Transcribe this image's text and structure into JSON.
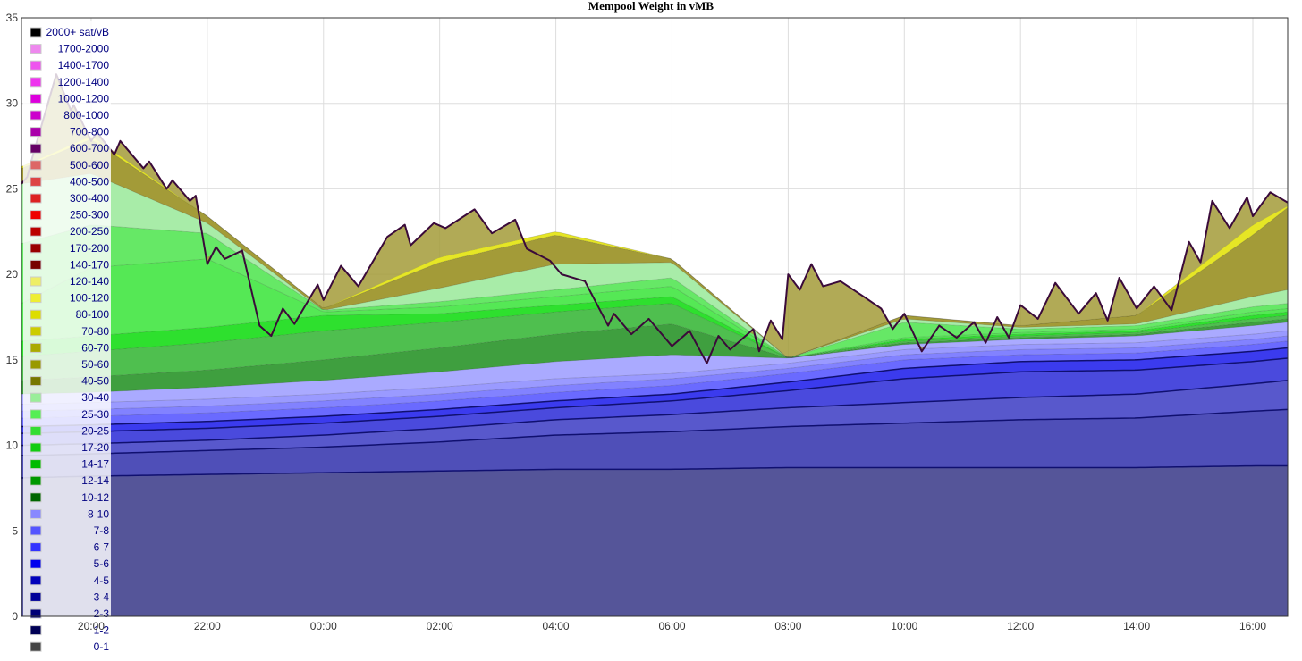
{
  "chart_data": {
    "type": "area",
    "title": "Mempool Weight in vMB",
    "xlabel": "",
    "ylabel": "",
    "ylim": [
      0,
      35
    ],
    "y_ticks": [
      0,
      5,
      10,
      15,
      20,
      25,
      30,
      35
    ],
    "x_range_hours": [
      18.8,
      40.6
    ],
    "x_ticks": [
      {
        "label": "20:00",
        "h": 20
      },
      {
        "label": "22:00",
        "h": 22
      },
      {
        "label": "00:00",
        "h": 24
      },
      {
        "label": "02:00",
        "h": 26
      },
      {
        "label": "04:00",
        "h": 28
      },
      {
        "label": "06:00",
        "h": 30
      },
      {
        "label": "08:00",
        "h": 32
      },
      {
        "label": "10:00",
        "h": 34
      },
      {
        "label": "12:00",
        "h": 36
      },
      {
        "label": "14:00",
        "h": 38
      },
      {
        "label": "16:00",
        "h": 40
      }
    ],
    "grid": true,
    "legend_position": "top-left",
    "legend": [
      {
        "label": "2000+ sat/vB",
        "color": "#000000"
      },
      {
        "label": "1700-2000",
        "color": "#ee88ee"
      },
      {
        "label": "1400-1700",
        "color": "#ee55ee"
      },
      {
        "label": "1200-1400",
        "color": "#ee33ee"
      },
      {
        "label": "1000-1200",
        "color": "#dd00dd"
      },
      {
        "label": "800-1000",
        "color": "#cc00cc"
      },
      {
        "label": "700-800",
        "color": "#aa00aa"
      },
      {
        "label": "600-700",
        "color": "#660066"
      },
      {
        "label": "500-600",
        "color": "#dd6666"
      },
      {
        "label": "400-500",
        "color": "#dd4444"
      },
      {
        "label": "300-400",
        "color": "#dd2222"
      },
      {
        "label": "250-300",
        "color": "#ee0000"
      },
      {
        "label": "200-250",
        "color": "#bb0000"
      },
      {
        "label": "170-200",
        "color": "#990000"
      },
      {
        "label": "140-170",
        "color": "#770000"
      },
      {
        "label": "120-140",
        "color": "#eeee66"
      },
      {
        "label": "100-120",
        "color": "#eeee33"
      },
      {
        "label": "80-100",
        "color": "#dddd00"
      },
      {
        "label": "70-80",
        "color": "#cccc00"
      },
      {
        "label": "60-70",
        "color": "#aaaa00"
      },
      {
        "label": "50-60",
        "color": "#999900"
      },
      {
        "label": "40-50",
        "color": "#777700"
      },
      {
        "label": "30-40",
        "color": "#99ee99"
      },
      {
        "label": "25-30",
        "color": "#55ee55"
      },
      {
        "label": "20-25",
        "color": "#33dd33"
      },
      {
        "label": "17-20",
        "color": "#11cc11"
      },
      {
        "label": "14-17",
        "color": "#00bb00"
      },
      {
        "label": "12-14",
        "color": "#009900"
      },
      {
        "label": "10-12",
        "color": "#006600"
      },
      {
        "label": "8-10",
        "color": "#8888ff"
      },
      {
        "label": "7-8",
        "color": "#5555ff"
      },
      {
        "label": "6-7",
        "color": "#3333ff"
      },
      {
        "label": "5-6",
        "color": "#0000ee"
      },
      {
        "label": "4-5",
        "color": "#0000bb"
      },
      {
        "label": "3-4",
        "color": "#000099"
      },
      {
        "label": "2-3",
        "color": "#000077"
      },
      {
        "label": "1-2",
        "color": "#000055"
      },
      {
        "label": "0-1",
        "color": "#444444"
      }
    ],
    "series": [
      {
        "label": "0-1",
        "color": "#555599",
        "x": [
          18.8,
          20,
          22,
          24,
          26,
          28,
          30,
          32,
          34,
          36,
          38,
          40,
          40.6
        ],
        "y": [
          8.1,
          8.2,
          8.3,
          8.4,
          8.5,
          8.6,
          8.6,
          8.7,
          8.7,
          8.7,
          8.7,
          8.8,
          8.8
        ]
      },
      {
        "label": "1-2",
        "color": "#4f4fb8",
        "x": [
          18.8,
          20,
          22,
          24,
          26,
          28,
          30,
          32,
          34,
          36,
          38,
          40,
          40.6
        ],
        "y": [
          1.3,
          1.3,
          1.4,
          1.5,
          1.7,
          2.0,
          2.2,
          2.4,
          2.6,
          2.8,
          2.9,
          3.2,
          3.3
        ]
      },
      {
        "label": "2-3",
        "color": "#5858cc",
        "x": [
          18.8,
          20,
          22,
          24,
          26,
          28,
          30,
          32,
          34,
          36,
          38,
          40,
          40.6
        ],
        "y": [
          0.6,
          0.6,
          0.6,
          0.7,
          0.8,
          0.9,
          1.0,
          1.1,
          1.2,
          1.3,
          1.4,
          1.6,
          1.7
        ]
      },
      {
        "label": "3-4",
        "color": "#4a4add",
        "x": [
          18.8,
          20,
          22,
          24,
          26,
          28,
          30,
          32,
          34,
          36,
          38,
          40,
          40.6
        ],
        "y": [
          0.7,
          0.7,
          0.7,
          0.7,
          0.7,
          0.7,
          0.8,
          1.0,
          1.4,
          1.5,
          1.4,
          1.3,
          1.3
        ]
      },
      {
        "label": "4-5",
        "color": "#3b3bee",
        "x": [
          18.8,
          20,
          22,
          24,
          26,
          28,
          30,
          32,
          34,
          36,
          38,
          40,
          40.6
        ],
        "y": [
          0.4,
          0.4,
          0.4,
          0.4,
          0.4,
          0.4,
          0.4,
          0.5,
          0.6,
          0.6,
          0.6,
          0.6,
          0.6
        ]
      },
      {
        "label": "5-6",
        "color": "#6a6aff",
        "x": [
          18.8,
          20,
          22,
          24,
          26,
          28,
          30,
          32,
          34,
          36,
          38,
          40,
          40.6
        ],
        "y": [
          0.5,
          0.5,
          0.5,
          0.5,
          0.5,
          0.5,
          0.5,
          0.5,
          0.5,
          0.4,
          0.4,
          0.4,
          0.4
        ]
      },
      {
        "label": "6-7",
        "color": "#8282ff",
        "x": [
          18.8,
          20,
          22,
          24,
          26,
          28,
          30,
          32,
          34,
          36,
          38,
          40,
          40.6
        ],
        "y": [
          0.4,
          0.4,
          0.4,
          0.4,
          0.4,
          0.4,
          0.4,
          0.3,
          0.3,
          0.3,
          0.3,
          0.3,
          0.3
        ]
      },
      {
        "label": "7-8",
        "color": "#9a9aff",
        "x": [
          18.8,
          20,
          22,
          24,
          26,
          28,
          30,
          32,
          34,
          36,
          38,
          40,
          40.6
        ],
        "y": [
          0.4,
          0.4,
          0.4,
          0.4,
          0.4,
          0.4,
          0.3,
          0.3,
          0.3,
          0.3,
          0.3,
          0.3,
          0.3
        ]
      },
      {
        "label": "8-10",
        "color": "#aaaaff",
        "x": [
          18.8,
          20,
          22,
          24,
          26,
          28,
          30,
          32,
          34,
          36,
          38,
          40,
          40.6
        ],
        "y": [
          0.6,
          0.6,
          0.7,
          0.8,
          0.9,
          1.0,
          1.1,
          0.3,
          0.3,
          0.3,
          0.4,
          0.5,
          0.5
        ]
      },
      {
        "label": "10-12",
        "color": "#3f9f3f",
        "x": [
          18.8,
          20,
          22,
          24,
          26,
          28,
          30,
          32,
          34,
          36,
          38,
          40,
          40.6
        ],
        "y": [
          0.8,
          0.9,
          1.0,
          1.2,
          1.4,
          1.6,
          1.8,
          0.0,
          0.1,
          0.1,
          0.1,
          0.2,
          0.2
        ]
      },
      {
        "label": "12-14",
        "color": "#4fbf4f",
        "x": [
          18.8,
          20,
          22,
          24,
          26,
          28,
          30,
          32,
          34,
          36,
          38,
          40,
          40.6
        ],
        "y": [
          1.4,
          1.5,
          1.6,
          1.7,
          1.5,
          1.3,
          1.2,
          0.0,
          0.1,
          0.1,
          0.1,
          0.2,
          0.2
        ]
      },
      {
        "label": "14-17",
        "color": "#2ee02e",
        "x": [
          18.8,
          20,
          22,
          24,
          26,
          28,
          30,
          32,
          34,
          36,
          38,
          40,
          40.6
        ],
        "y": [
          0.9,
          0.9,
          0.9,
          0.9,
          0.5,
          0.4,
          0.4,
          0.0,
          0.1,
          0.1,
          0.1,
          0.2,
          0.2
        ]
      },
      {
        "label": "17-20",
        "color": "#55e855",
        "x": [
          18.8,
          20,
          22,
          24,
          26,
          28,
          30,
          32,
          34,
          36,
          38,
          40,
          40.6
        ],
        "y": [
          2.2,
          4.0,
          4.0,
          0.2,
          0.4,
          0.5,
          0.6,
          0.0,
          0.1,
          0.1,
          0.1,
          0.2,
          0.2
        ]
      },
      {
        "label": "20-25",
        "color": "#66e866",
        "x": [
          18.8,
          20,
          22,
          24,
          26,
          28,
          30,
          32,
          34,
          36,
          38,
          40,
          40.6
        ],
        "y": [
          3.5,
          2.5,
          1.5,
          0.1,
          0.3,
          0.4,
          0.5,
          0.0,
          0.9,
          0.2,
          0.2,
          0.3,
          0.3
        ]
      },
      {
        "label": "30-40",
        "color": "#a8eca8",
        "x": [
          18.8,
          20,
          22,
          24,
          26,
          28,
          30,
          32,
          34,
          36,
          38,
          40,
          40.6
        ],
        "y": [
          3.5,
          3.0,
          0.6,
          0.0,
          0.8,
          1.5,
          0.9,
          0.0,
          0.2,
          0.1,
          0.1,
          0.6,
          0.8
        ]
      },
      {
        "label": "40-50",
        "color": "#a39b38",
        "x": [
          18.8,
          20,
          22,
          24,
          26,
          28,
          30,
          32,
          34,
          36,
          38,
          40,
          40.6
        ],
        "y": [
          0.9,
          2.0,
          0.4,
          0.1,
          1.5,
          1.7,
          0.2,
          0.0,
          0.2,
          0.1,
          0.5,
          3.6,
          4.8
        ]
      },
      {
        "label": "80-100",
        "color": "#e6e625",
        "x": [
          18.8,
          20,
          22,
          24,
          26,
          28,
          30,
          32,
          34,
          36,
          38,
          40,
          40.6
        ],
        "y": [
          0.1,
          0.2,
          0.0,
          0.0,
          0.3,
          0.2,
          0.0,
          0.0,
          0.0,
          0.0,
          0.0,
          0.6,
          0.1
        ]
      }
    ],
    "total_outline": {
      "color": "#3a0a3a",
      "x": [
        18.8,
        18.9,
        19.0,
        19.4,
        19.65,
        19.7,
        20.0,
        20.1,
        20.4,
        20.5,
        20.9,
        21.0,
        21.3,
        21.4,
        21.7,
        21.8,
        22.0,
        22.15,
        22.3,
        22.6,
        22.9,
        23.1,
        23.3,
        23.5,
        23.9,
        24.0,
        24.3,
        24.6,
        25.1,
        25.4,
        25.5,
        25.9,
        26.1,
        26.6,
        26.9,
        27.3,
        27.5,
        27.9,
        28.1,
        28.5,
        28.9,
        29.0,
        29.3,
        29.6,
        30.0,
        30.3,
        30.6,
        30.8,
        31.0,
        31.4,
        31.5,
        31.7,
        31.9,
        32.0,
        32.2,
        32.4,
        32.6,
        32.9,
        33.3,
        33.6,
        33.8,
        34.0,
        34.3,
        34.6,
        34.9,
        35.2,
        35.4,
        35.6,
        35.8,
        36.0,
        36.3,
        36.6,
        37.0,
        37.3,
        37.5,
        37.7,
        38.0,
        38.3,
        38.6,
        38.9,
        39.1,
        39.3,
        39.6,
        39.9,
        40.0,
        40.3,
        40.6
      ],
      "y": [
        25.3,
        25.7,
        27.0,
        31.7,
        29.6,
        29.9,
        27.8,
        28.3,
        27.0,
        27.8,
        26.2,
        26.6,
        25.0,
        25.5,
        24.3,
        24.6,
        20.6,
        21.6,
        20.9,
        21.4,
        17.0,
        16.4,
        18.0,
        17.1,
        19.4,
        18.5,
        20.5,
        19.3,
        22.2,
        22.9,
        21.7,
        23.0,
        22.7,
        23.8,
        22.4,
        23.2,
        21.5,
        20.8,
        20.0,
        19.6,
        17.0,
        17.7,
        16.5,
        17.4,
        15.8,
        16.7,
        14.8,
        16.4,
        15.6,
        16.8,
        15.5,
        17.3,
        16.2,
        20.0,
        19.1,
        20.6,
        19.3,
        19.6,
        18.7,
        18.0,
        16.8,
        17.7,
        15.5,
        17.0,
        16.3,
        17.2,
        16.0,
        17.5,
        16.3,
        18.2,
        17.4,
        19.5,
        17.7,
        18.9,
        17.3,
        19.8,
        18.0,
        19.3,
        17.9,
        21.9,
        20.7,
        24.3,
        22.7,
        24.5,
        23.4,
        24.8,
        24.2
      ]
    }
  }
}
